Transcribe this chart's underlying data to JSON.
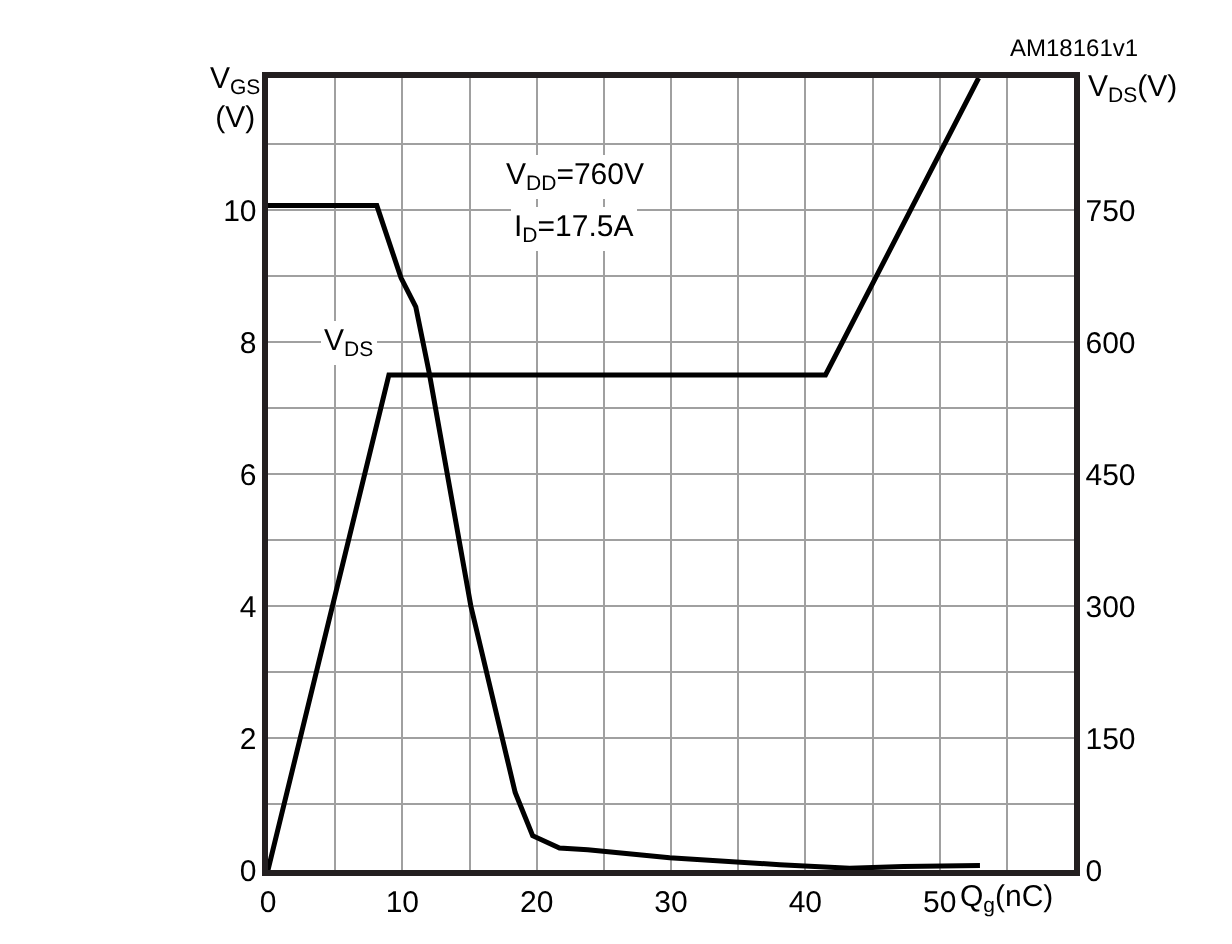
{
  "chart_data": {
    "type": "line",
    "xlabel": "Q$_{g}$(nC)",
    "ylabel": "V$_{GS}$ (V)",
    "y2label": "V$_{DS}$(V)",
    "xlim": [
      0,
      60
    ],
    "ylim": [
      0,
      12
    ],
    "y2lim": [
      0,
      900
    ],
    "xticks": [
      0,
      {
        "value": 5,
        "label": null
      },
      10,
      {
        "value": 15,
        "label": null
      },
      20,
      {
        "value": 25,
        "label": null
      },
      30,
      {
        "value": 35,
        "label": null
      },
      40,
      {
        "value": 45,
        "label": null
      },
      50,
      {
        "value": 55,
        "label": null
      }
    ],
    "yticks": [
      0,
      {
        "value": 1,
        "label": null
      },
      2,
      {
        "value": 3,
        "label": null
      },
      4,
      {
        "value": 5,
        "label": null
      },
      6,
      {
        "value": 7,
        "label": null
      },
      8,
      {
        "value": 9,
        "label": null
      },
      10,
      {
        "value": 11,
        "label": null
      }
    ],
    "y2ticks": [
      0,
      150,
      300,
      450,
      600,
      750
    ],
    "grid": true,
    "legend": false,
    "marker": "none",
    "line_style": "solid",
    "annotations": [
      "V$_{DD}$=760V",
      "I$_{D}$=17.5A",
      "AM18161v1"
    ],
    "series": [
      {
        "color": "#000000",
        "x": [
          0,
          9.0,
          41.5,
          52.9
        ],
        "values": [
          0,
          7.5,
          7.5,
          12
        ]
      },
      {
        "name": "V$_{DS}$",
        "color": "#000000",
        "axis": "y2",
        "x": [
          0,
          8.1,
          9.9,
          11.0,
          12.0,
          15.1,
          18.4,
          19.7,
          21.7,
          23.8,
          29.9,
          38.1,
          43.3,
          47.3,
          53.0
        ],
        "values": [
          755,
          755,
          673,
          640,
          565,
          300,
          88,
          39,
          25,
          23,
          14,
          6,
          2,
          4,
          5
        ]
      }
    ]
  }
}
